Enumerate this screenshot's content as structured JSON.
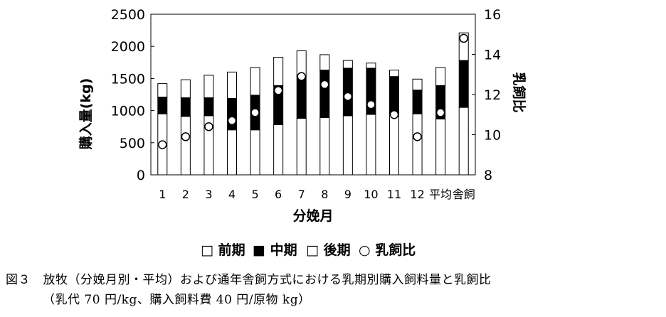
{
  "chart_data": {
    "type": "bar",
    "stacked": true,
    "categories": [
      "1",
      "2",
      "3",
      "4",
      "5",
      "6",
      "7",
      "8",
      "9",
      "10",
      "11",
      "12",
      "平均",
      "舎飼"
    ],
    "series": [
      {
        "name": "前期",
        "values": [
          950,
          910,
          920,
          700,
          700,
          780,
          880,
          890,
          920,
          940,
          950,
          950,
          870,
          1050
        ],
        "color": "#ffffff"
      },
      {
        "name": "中期",
        "values": [
          260,
          290,
          280,
          490,
          540,
          610,
          650,
          740,
          740,
          720,
          580,
          370,
          520,
          730
        ],
        "color": "#000000"
      },
      {
        "name": "後期",
        "values": [
          210,
          280,
          350,
          410,
          430,
          440,
          400,
          240,
          120,
          80,
          100,
          170,
          280,
          430
        ],
        "color": "#ffffff"
      }
    ],
    "line_series": {
      "name": "乳飼比",
      "axis": "right",
      "values": [
        9.5,
        9.9,
        10.4,
        10.7,
        11.1,
        12.2,
        12.9,
        12.5,
        11.9,
        11.5,
        11.0,
        9.9,
        11.1,
        14.8
      ]
    },
    "ylim": [
      0,
      2500
    ],
    "yticks": [
      0,
      500,
      1000,
      1500,
      2000,
      2500
    ],
    "y2lim": [
      8,
      16
    ],
    "y2ticks": [
      8,
      10,
      12,
      14,
      16
    ],
    "xlabel": "分娩月",
    "ylabel": "購入量(kg)",
    "y2label": "乳飼比",
    "legend": [
      "□ 前期",
      "■ 中期",
      "□ 後期",
      "○ 乳飼比"
    ],
    "legend_position": "bottom"
  },
  "caption": {
    "line1": "図３　放牧（分娩月別・平均）および通年舎飼方式における乳期別購入飼料量と乳飼比",
    "line2": "（乳代 70 円/kg、購入飼料費 40 円/原物 kg）"
  }
}
